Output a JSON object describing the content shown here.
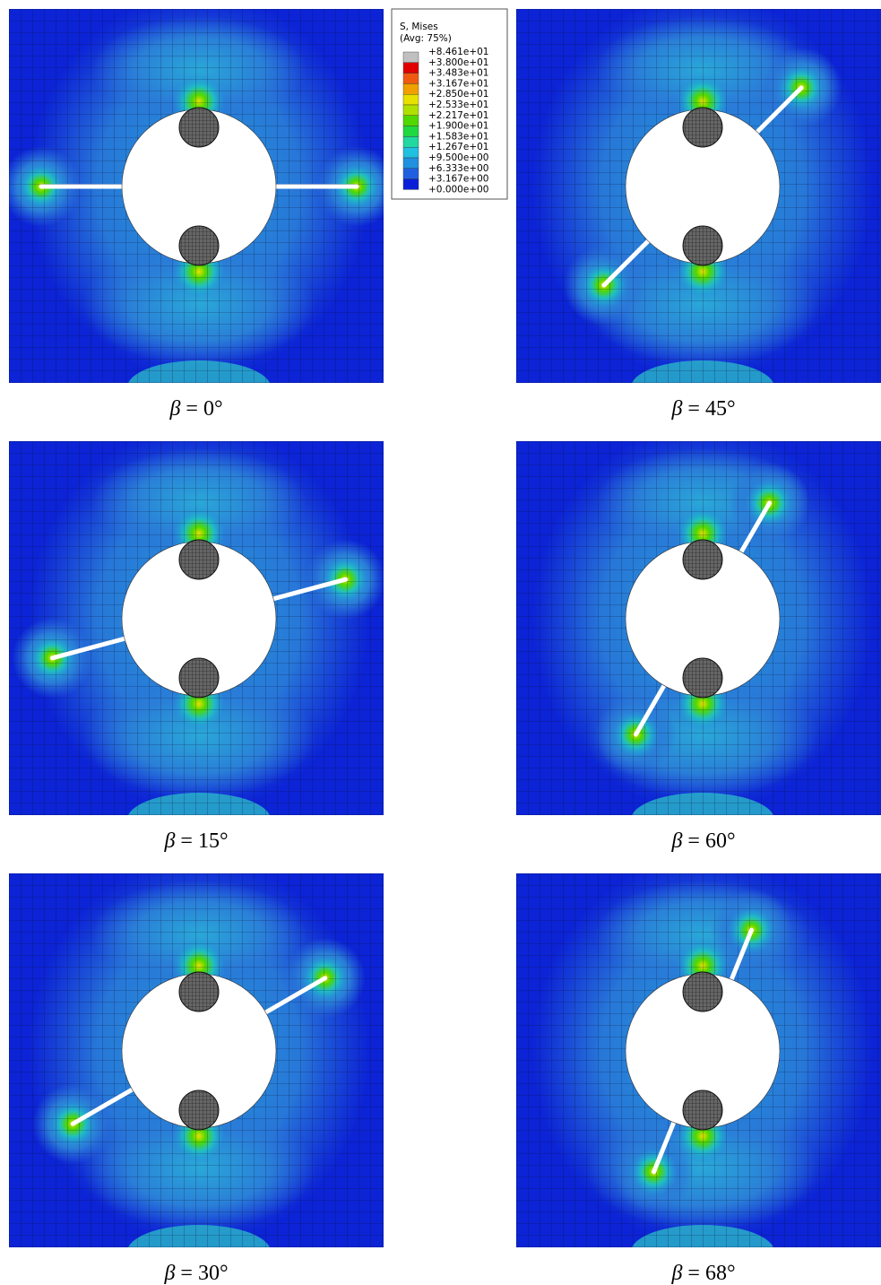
{
  "legend": {
    "title": "S, Mises",
    "subtitle": "(Avg: 75%)",
    "labels": [
      "+8.461e+01",
      "+3.800e+01",
      "+3.483e+01",
      "+3.167e+01",
      "+2.850e+01",
      "+2.533e+01",
      "+2.217e+01",
      "+1.900e+01",
      "+1.583e+01",
      "+1.267e+01",
      "+9.500e+00",
      "+6.333e+00",
      "+3.167e+00",
      "+0.000e+00"
    ],
    "colors": [
      "#c0c0c0",
      "#e00000",
      "#f05a10",
      "#f0a000",
      "#e8e000",
      "#b0e000",
      "#50d800",
      "#20d840",
      "#20d8a0",
      "#20c0e0",
      "#2090e0",
      "#2060e0",
      "#0a20d8"
    ]
  },
  "panels": [
    {
      "symbol": "β",
      "angle": 0,
      "label": "= 0°"
    },
    {
      "symbol": "β",
      "angle": 45,
      "label": "= 45°"
    },
    {
      "symbol": "β",
      "angle": 15,
      "label": "= 15°"
    },
    {
      "symbol": "β",
      "angle": 60,
      "label": "= 60°"
    },
    {
      "symbol": "β",
      "angle": 30,
      "label": "= 30°"
    },
    {
      "symbol": "β",
      "angle": 68,
      "label": "= 68°"
    }
  ]
}
